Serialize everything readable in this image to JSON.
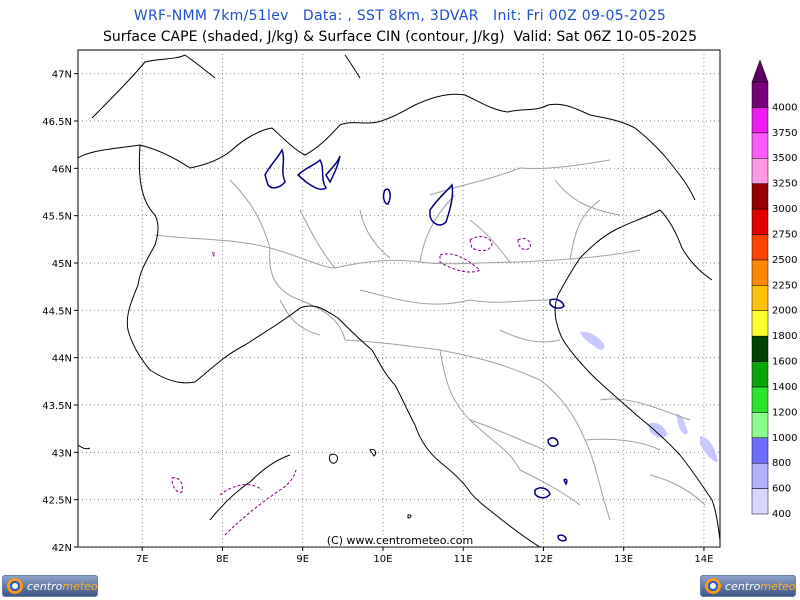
{
  "header": {
    "title_line1": "WRF-NMM 7km/51lev   Data: , SST 8km, 3DVAR   Init: Fri 00Z 09-05-2025",
    "title_line2": "Surface CAPE (shaded, J/kg) & Surface CIN (contour, J/kg)  Valid: Sat 06Z 10-05-2025"
  },
  "axes": {
    "lat_labels": [
      "47N",
      "46.5N",
      "46N",
      "45.5N",
      "45N",
      "44.5N",
      "44N",
      "43.5N",
      "43N",
      "42.5N",
      "42N"
    ],
    "lon_labels": [
      "7E",
      "8E",
      "9E",
      "10E",
      "11E",
      "12E",
      "13E",
      "14E"
    ],
    "lat_range": [
      42,
      47.25
    ],
    "lon_range": [
      6.2,
      14.2
    ]
  },
  "colorbar": {
    "labels": [
      "400",
      "600",
      "800",
      "1000",
      "1200",
      "1400",
      "1600",
      "1800",
      "2000",
      "2250",
      "2500",
      "2750",
      "3000",
      "3250",
      "3500",
      "3750",
      "4000"
    ],
    "colors": [
      "#d8d8ff",
      "#b2b2ff",
      "#6c6cff",
      "#8cff8c",
      "#2ee52e",
      "#0ba40b",
      "#004400",
      "#ffff2e",
      "#ffc20a",
      "#ff8800",
      "#ff4400",
      "#e50000",
      "#960000",
      "#ff99e6",
      "#ff5cff",
      "#ee1bee",
      "#780078"
    ],
    "top_arrow_color": "#5a0060"
  },
  "colors": {
    "coast": "#000000",
    "borders": "#a0a0a0",
    "lakes": "#000080",
    "cin_contour": "#800080",
    "cape_light": "#c8c8ff"
  },
  "copyright": "(C) www.centrometeo.com",
  "logos": {
    "left": {
      "pre": "centro",
      "accent": "meteo"
    },
    "right": {
      "pre": "centro",
      "accent": "meteo"
    }
  }
}
